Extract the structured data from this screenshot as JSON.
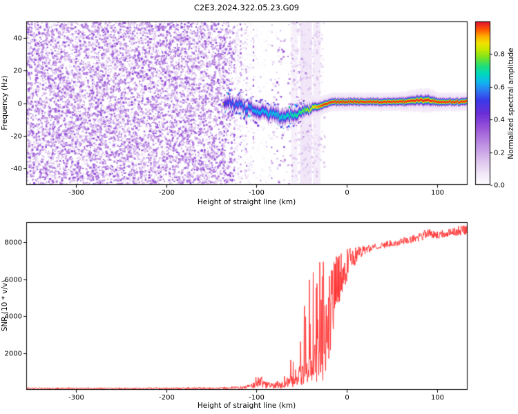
{
  "title": "C2E3.2024.322.05.23.G09",
  "chart_data": [
    {
      "type": "heatmap",
      "title": "C2E3.2024.322.05.23.G09",
      "xlabel": "Height of straight line (km)",
      "ylabel": "Frequency (Hz)",
      "xlim": [
        -355,
        134
      ],
      "ylim": [
        -50,
        50
      ],
      "xticks": [
        -300,
        -200,
        -100,
        0,
        100
      ],
      "yticks": [
        -40,
        -20,
        0,
        20,
        40
      ],
      "grid": false,
      "colorbar": {
        "label": "Normalized spectral amplitude",
        "range": [
          0,
          1
        ],
        "ticks": [
          "0.0",
          "0.2",
          "0.4",
          "0.6",
          "0.8"
        ],
        "tick_values": [
          0,
          0.2,
          0.4,
          0.6,
          0.8
        ],
        "stops": [
          [
            0,
            "#ffffff"
          ],
          [
            0.07,
            "#f2e8f8"
          ],
          [
            0.15,
            "#ddc3ee"
          ],
          [
            0.25,
            "#bd8fe2"
          ],
          [
            0.35,
            "#9a55d8"
          ],
          [
            0.44,
            "#6a2ed8"
          ],
          [
            0.52,
            "#3a3ae8"
          ],
          [
            0.58,
            "#2b7bf2"
          ],
          [
            0.63,
            "#10b6ee"
          ],
          [
            0.68,
            "#00d8c0"
          ],
          [
            0.73,
            "#22dd77"
          ],
          [
            0.78,
            "#77e322"
          ],
          [
            0.83,
            "#c8e800"
          ],
          [
            0.87,
            "#f2e200"
          ],
          [
            0.91,
            "#ffad00"
          ],
          [
            0.95,
            "#ff5a00"
          ],
          [
            1,
            "#e01030"
          ]
        ]
      },
      "noise": {
        "x_range": [
          -355,
          -135
        ],
        "fade_to": -38,
        "amp_range": [
          0.06,
          0.38
        ],
        "count": 12000
      },
      "white_streaks": [
        {
          "x": -121,
          "w": 5,
          "alpha": 0.75
        },
        {
          "x": -114,
          "w": 4,
          "alpha": 0.8
        },
        {
          "x": -107,
          "w": 6,
          "alpha": 0.85
        },
        {
          "x": -99,
          "w": 7,
          "alpha": 0.9
        },
        {
          "x": -92,
          "w": 6,
          "alpha": 0.85
        },
        {
          "x": -86,
          "w": 5,
          "alpha": 0.8
        },
        {
          "x": -80,
          "w": 4,
          "alpha": 0.6
        }
      ],
      "purple_smears": [
        {
          "x": -58,
          "w": 7,
          "alpha": 0.16
        },
        {
          "x": -45,
          "w": 13,
          "alpha": 0.28
        },
        {
          "x": -33,
          "w": 8,
          "alpha": 0.2
        }
      ],
      "halo_dots": {
        "x_range": [
          -62,
          -24
        ],
        "count": 350,
        "amp_range": [
          0.05,
          0.16
        ]
      },
      "trace_scatter": {
        "x_range": [
          -136,
          -42
        ],
        "count": 700,
        "freq_spread": 9,
        "amp_range": [
          0.35,
          0.85
        ]
      },
      "trace_columns": [
        "height_km",
        "freq_hz",
        "amplitude",
        "sigma_hz"
      ],
      "trace": [
        [
          -136,
          -1,
          0.5,
          2.2
        ],
        [
          -130,
          2,
          0.55,
          2.2
        ],
        [
          -124,
          -2,
          0.58,
          2.2
        ],
        [
          -118,
          1,
          0.6,
          2.2
        ],
        [
          -112,
          -4,
          0.6,
          2.3
        ],
        [
          -106,
          -2,
          0.62,
          2.3
        ],
        [
          -100,
          -6,
          0.64,
          2.4
        ],
        [
          -94,
          -4,
          0.64,
          2.4
        ],
        [
          -88,
          -7,
          0.66,
          2.4
        ],
        [
          -82,
          -5,
          0.66,
          2.4
        ],
        [
          -76,
          -8,
          0.68,
          2.4
        ],
        [
          -70,
          -9,
          0.68,
          2.4
        ],
        [
          -64,
          -7,
          0.7,
          2.3
        ],
        [
          -58,
          -8,
          0.72,
          2.2
        ],
        [
          -52,
          -6,
          0.75,
          2.0
        ],
        [
          -47,
          -4,
          0.8,
          1.9
        ],
        [
          -42,
          -4,
          0.85,
          1.7
        ],
        [
          -37,
          -2,
          0.9,
          1.6
        ],
        [
          -32,
          -2,
          0.95,
          1.5
        ],
        [
          -27,
          -1,
          1,
          1.4
        ],
        [
          -22,
          0,
          1,
          1.35
        ],
        [
          -15,
          1,
          1,
          1.3
        ],
        [
          0,
          1,
          1,
          1.3
        ],
        [
          20,
          1,
          1,
          1.3
        ],
        [
          40,
          1,
          1,
          1.35
        ],
        [
          60,
          1,
          1,
          1.4
        ],
        [
          80,
          2,
          1,
          1.7
        ],
        [
          90,
          2,
          1,
          1.8
        ],
        [
          100,
          1,
          1,
          1.4
        ],
        [
          115,
          1,
          1,
          1.3
        ],
        [
          134,
          1,
          1,
          1.35
        ]
      ]
    },
    {
      "type": "line",
      "xlabel": "Height of straight line (km)",
      "ylabel": "SNR (10 * v/v)",
      "xlim": [
        -355,
        134
      ],
      "ylim": [
        0,
        9100
      ],
      "xticks": [
        -300,
        -200,
        -100,
        0,
        100
      ],
      "yticks": [
        2000,
        4000,
        6000,
        8000
      ],
      "grid": false,
      "line_color": "#ff2d2d",
      "points_columns": [
        "height_km",
        "snr",
        "noise",
        "spike_amplitude"
      ],
      "series": [
        {
          "name": "SNR",
          "points": [
            [
              -355,
              80,
              45,
              0
            ],
            [
              -300,
              80,
              45,
              0
            ],
            [
              -250,
              75,
              45,
              0
            ],
            [
              -200,
              80,
              50,
              0
            ],
            [
              -160,
              85,
              55,
              0
            ],
            [
              -140,
              95,
              60,
              0
            ],
            [
              -125,
              110,
              70,
              0
            ],
            [
              -112,
              140,
              90,
              0
            ],
            [
              -103,
              250,
              180,
              600
            ],
            [
              -96,
              420,
              300,
              900
            ],
            [
              -90,
              260,
              180,
              500
            ],
            [
              -82,
              230,
              160,
              400
            ],
            [
              -74,
              280,
              200,
              600
            ],
            [
              -66,
              380,
              280,
              1100
            ],
            [
              -60,
              520,
              380,
              1800
            ],
            [
              -55,
              700,
              500,
              2600
            ],
            [
              -50,
              850,
              600,
              3600
            ],
            [
              -46,
              950,
              700,
              4700
            ],
            [
              -42,
              1100,
              800,
              5800
            ],
            [
              -38,
              1300,
              1000,
              6500
            ],
            [
              -34,
              1500,
              1200,
              6800
            ],
            [
              -30,
              1800,
              1400,
              7000
            ],
            [
              -26,
              2200,
              1700,
              7000
            ],
            [
              -22,
              3200,
              2200,
              7100
            ],
            [
              -18,
              4400,
              2400,
              0
            ],
            [
              -14,
              5200,
              2000,
              0
            ],
            [
              -10,
              5800,
              1600,
              0
            ],
            [
              -6,
              6200,
              1300,
              0
            ],
            [
              -2,
              6600,
              1000,
              0
            ],
            [
              2,
              6900,
              800,
              0
            ],
            [
              6,
              7100,
              600,
              0
            ],
            [
              10,
              7300,
              450,
              0
            ],
            [
              15,
              7450,
              320,
              0
            ],
            [
              20,
              7600,
              240,
              0
            ],
            [
              28,
              7720,
              200,
              0
            ],
            [
              36,
              7800,
              190,
              0
            ],
            [
              45,
              7900,
              180,
              0
            ],
            [
              55,
              8000,
              190,
              0
            ],
            [
              65,
              8100,
              190,
              0
            ],
            [
              75,
              8200,
              210,
              0
            ],
            [
              84,
              8350,
              240,
              0
            ],
            [
              90,
              8550,
              260,
              0
            ],
            [
              96,
              8400,
              220,
              0
            ],
            [
              105,
              8450,
              220,
              0
            ],
            [
              112,
              8550,
              230,
              0
            ],
            [
              120,
              8600,
              250,
              0
            ],
            [
              127,
              8650,
              260,
              0
            ],
            [
              134,
              8700,
              270,
              0
            ]
          ]
        }
      ]
    }
  ]
}
